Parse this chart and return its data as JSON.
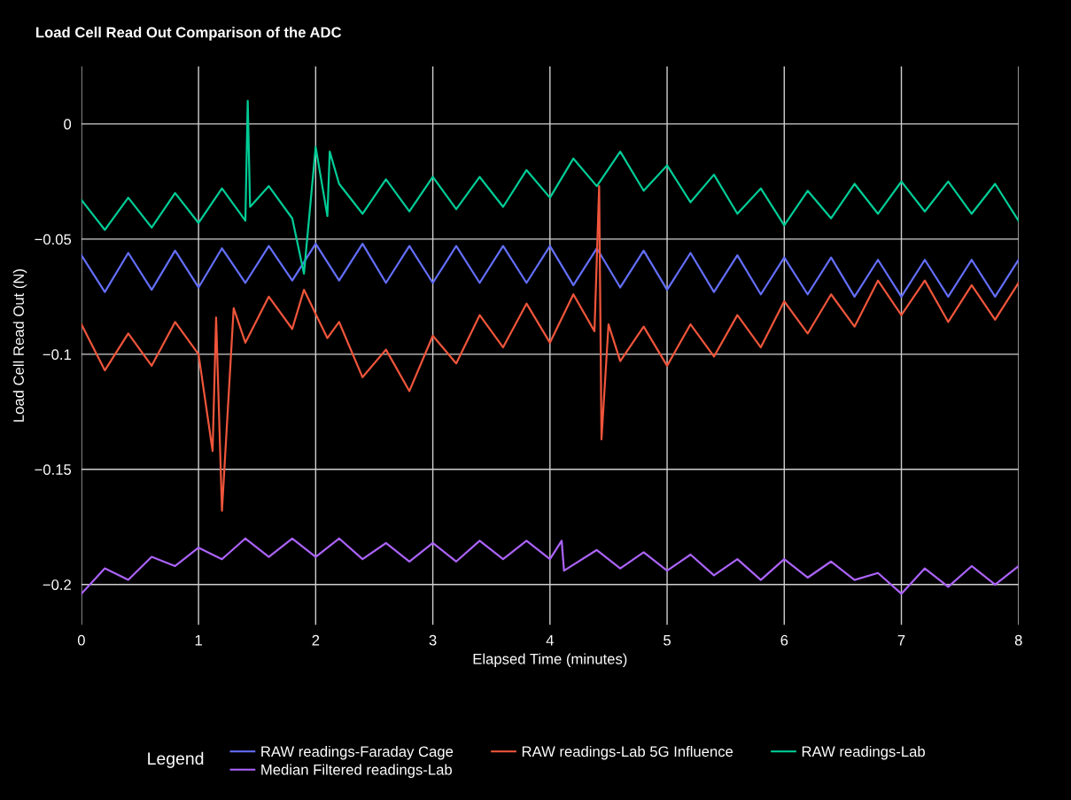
{
  "chart_data": {
    "type": "line",
    "title": "Load Cell Read Out Comparison of the ADC",
    "xlabel": "Elapsed Time (minutes)",
    "ylabel": "Load Cell Read Out (N)",
    "legend_title": "Legend",
    "xlim": [
      0,
      8
    ],
    "xticks": [
      0,
      1,
      2,
      3,
      4,
      5,
      6,
      7,
      8
    ],
    "ylim": [
      -0.2175,
      0.025
    ],
    "yticks": [
      {
        "value": -0.2,
        "label": "−0.2"
      },
      {
        "value": -0.15,
        "label": "−0.15"
      },
      {
        "value": -0.1,
        "label": "−0.1"
      },
      {
        "value": -0.05,
        "label": "−0.05"
      },
      0
    ],
    "grid": true,
    "legend": "bottom",
    "marker": "none",
    "line_style": "solid",
    "series": [
      {
        "name": "RAW readings-Faraday Cage",
        "color": "#636efa",
        "x": [
          0,
          0.2,
          0.4,
          0.6,
          0.8,
          1.0,
          1.2,
          1.4,
          1.6,
          1.8,
          2.0,
          2.2,
          2.4,
          2.6,
          2.8,
          3.0,
          3.2,
          3.4,
          3.6,
          3.8,
          4.0,
          4.2,
          4.4,
          4.6,
          4.8,
          5.0,
          5.2,
          5.4,
          5.6,
          5.8,
          6.0,
          6.2,
          6.4,
          6.6,
          6.8,
          7.0,
          7.2,
          7.4,
          7.6,
          7.8,
          8.0
        ],
        "values": [
          -0.057,
          -0.073,
          -0.056,
          -0.072,
          -0.055,
          -0.071,
          -0.054,
          -0.069,
          -0.053,
          -0.068,
          -0.052,
          -0.068,
          -0.052,
          -0.069,
          -0.053,
          -0.069,
          -0.053,
          -0.069,
          -0.053,
          -0.069,
          -0.053,
          -0.07,
          -0.054,
          -0.071,
          -0.055,
          -0.072,
          -0.056,
          -0.073,
          -0.057,
          -0.074,
          -0.058,
          -0.074,
          -0.058,
          -0.075,
          -0.059,
          -0.075,
          -0.059,
          -0.075,
          -0.059,
          -0.075,
          -0.059
        ]
      },
      {
        "name": "RAW readings-Lab 5G Influence",
        "color": "#ef553b",
        "x": [
          0,
          0.2,
          0.4,
          0.6,
          0.8,
          1.0,
          1.12,
          1.15,
          1.2,
          1.3,
          1.4,
          1.6,
          1.8,
          1.9,
          2.1,
          2.2,
          2.4,
          2.6,
          2.8,
          3.0,
          3.2,
          3.4,
          3.6,
          3.8,
          4.0,
          4.2,
          4.38,
          4.42,
          4.44,
          4.5,
          4.6,
          4.8,
          5.0,
          5.2,
          5.4,
          5.6,
          5.8,
          6.0,
          6.2,
          6.4,
          6.6,
          6.8,
          7.0,
          7.2,
          7.4,
          7.6,
          7.8,
          8.0
        ],
        "values": [
          -0.087,
          -0.107,
          -0.091,
          -0.105,
          -0.086,
          -0.1,
          -0.142,
          -0.084,
          -0.168,
          -0.08,
          -0.095,
          -0.075,
          -0.089,
          -0.072,
          -0.093,
          -0.086,
          -0.11,
          -0.098,
          -0.116,
          -0.092,
          -0.104,
          -0.083,
          -0.097,
          -0.078,
          -0.095,
          -0.074,
          -0.09,
          -0.027,
          -0.137,
          -0.087,
          -0.103,
          -0.088,
          -0.105,
          -0.087,
          -0.101,
          -0.083,
          -0.097,
          -0.077,
          -0.091,
          -0.074,
          -0.088,
          -0.068,
          -0.083,
          -0.068,
          -0.086,
          -0.07,
          -0.085,
          -0.069
        ]
      },
      {
        "name": "RAW readings-Lab",
        "color": "#00cc96",
        "x": [
          0,
          0.2,
          0.4,
          0.6,
          0.8,
          1.0,
          1.2,
          1.4,
          1.42,
          1.44,
          1.6,
          1.8,
          1.9,
          2.0,
          2.1,
          2.12,
          2.2,
          2.4,
          2.6,
          2.8,
          3.0,
          3.2,
          3.4,
          3.6,
          3.8,
          4.0,
          4.2,
          4.4,
          4.6,
          4.8,
          5.0,
          5.2,
          5.4,
          5.6,
          5.8,
          6.0,
          6.2,
          6.4,
          6.6,
          6.8,
          7.0,
          7.2,
          7.4,
          7.6,
          7.8,
          8.0
        ],
        "values": [
          -0.033,
          -0.046,
          -0.032,
          -0.045,
          -0.03,
          -0.043,
          -0.028,
          -0.042,
          0.01,
          -0.036,
          -0.027,
          -0.041,
          -0.065,
          -0.01,
          -0.04,
          -0.012,
          -0.026,
          -0.039,
          -0.024,
          -0.038,
          -0.023,
          -0.037,
          -0.023,
          -0.036,
          -0.02,
          -0.032,
          -0.015,
          -0.027,
          -0.012,
          -0.029,
          -0.018,
          -0.034,
          -0.022,
          -0.039,
          -0.028,
          -0.044,
          -0.029,
          -0.041,
          -0.026,
          -0.039,
          -0.025,
          -0.038,
          -0.025,
          -0.039,
          -0.026,
          -0.042
        ]
      },
      {
        "name": "Median Filtered readings-Lab",
        "color": "#ab63fa",
        "x": [
          0,
          0.2,
          0.4,
          0.6,
          0.8,
          1.0,
          1.2,
          1.4,
          1.6,
          1.8,
          2.0,
          2.2,
          2.4,
          2.6,
          2.8,
          3.0,
          3.2,
          3.4,
          3.6,
          3.8,
          4.0,
          4.1,
          4.12,
          4.4,
          4.6,
          4.8,
          5.0,
          5.2,
          5.4,
          5.6,
          5.8,
          6.0,
          6.2,
          6.4,
          6.6,
          6.8,
          7.0,
          7.2,
          7.4,
          7.6,
          7.8,
          8.0
        ],
        "values": [
          -0.204,
          -0.193,
          -0.198,
          -0.188,
          -0.192,
          -0.184,
          -0.189,
          -0.18,
          -0.188,
          -0.18,
          -0.188,
          -0.18,
          -0.189,
          -0.182,
          -0.19,
          -0.182,
          -0.19,
          -0.181,
          -0.189,
          -0.181,
          -0.189,
          -0.181,
          -0.194,
          -0.185,
          -0.193,
          -0.186,
          -0.194,
          -0.187,
          -0.196,
          -0.189,
          -0.198,
          -0.189,
          -0.197,
          -0.19,
          -0.198,
          -0.195,
          -0.204,
          -0.193,
          -0.201,
          -0.192,
          -0.2,
          -0.192
        ]
      }
    ]
  }
}
